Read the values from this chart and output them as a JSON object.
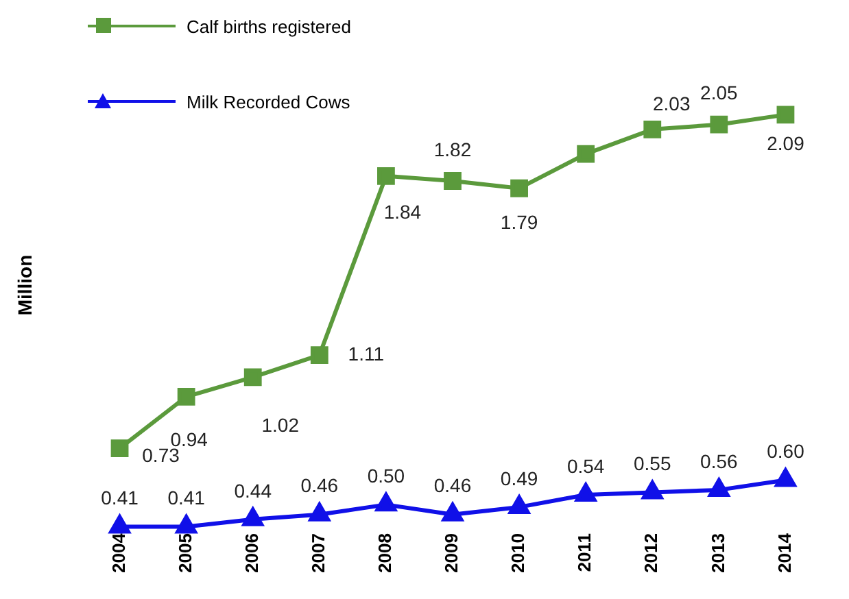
{
  "chart_data": {
    "type": "line",
    "ylabel": "Million",
    "categories": [
      "2004",
      "2005",
      "2006",
      "2007",
      "2008",
      "2009",
      "2010",
      "2011",
      "2012",
      "2013",
      "2014"
    ],
    "series": [
      {
        "name": "Calf births registered",
        "color": "#5b9a3c",
        "marker": "square",
        "values": [
          0.73,
          0.94,
          1.02,
          1.11,
          1.84,
          1.82,
          1.79,
          1.93,
          2.03,
          2.05,
          2.09
        ],
        "value_labels": [
          "0.73",
          "0.94",
          "1.02",
          "1.11",
          "1.84",
          "1.82",
          "1.79",
          null,
          "2.03",
          "2.05",
          "2.09"
        ]
      },
      {
        "name": "Milk Recorded Cows",
        "color": "#1010e8",
        "marker": "triangle",
        "values": [
          0.41,
          0.41,
          0.44,
          0.46,
          0.5,
          0.46,
          0.49,
          0.54,
          0.55,
          0.56,
          0.6
        ],
        "value_labels": [
          "0.41",
          "0.41",
          "0.44",
          "0.46",
          "0.50",
          "0.46",
          "0.49",
          "0.54",
          "0.55",
          "0.56",
          "0.60"
        ]
      }
    ],
    "tick_labels": "x",
    "grid": false,
    "legend": "top left",
    "line_style": "solid"
  }
}
